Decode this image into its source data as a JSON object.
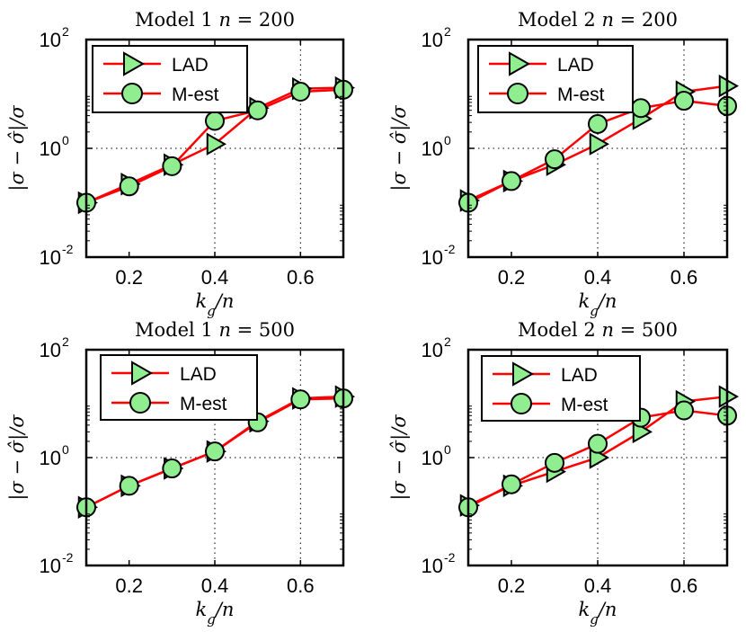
{
  "colors": {
    "line": "#ff0000",
    "marker_fill": "#90ee90",
    "marker_edge": "#000000",
    "axes": "#000000",
    "grid": "#000000",
    "background": "#ffffff"
  },
  "chart_data": [
    {
      "type": "line",
      "title": "Model 1 n = 200",
      "xlabel": "k_g/n",
      "ylabel": "|σ − σ̂|/σ",
      "yscale": "log",
      "xlim": [
        0.1,
        0.7
      ],
      "ylim": [
        0.01,
        100
      ],
      "xticks": [
        "0.2",
        "0.4",
        "0.6"
      ],
      "yticks": [
        {
          "base": "10",
          "exp": "2"
        },
        {
          "base": "10",
          "exp": "0"
        },
        {
          "base": "10",
          "exp": "-2"
        }
      ],
      "grid": "dotted at 0.4, 0.6 and 10^0",
      "legend_position": "top-left",
      "x": [
        0.1,
        0.2,
        0.3,
        0.4,
        0.5,
        0.6,
        0.7
      ],
      "series": [
        {
          "name": "LAD",
          "marker": "triangle-right",
          "values": [
            0.1,
            0.22,
            0.5,
            1.2,
            5.5,
            12.5,
            13.0
          ]
        },
        {
          "name": "M-est",
          "marker": "circle",
          "values": [
            0.1,
            0.2,
            0.47,
            3.2,
            5.0,
            11.0,
            12.0
          ]
        }
      ]
    },
    {
      "type": "line",
      "title": "Model 2 n = 200",
      "xlabel": "k_g/n",
      "ylabel": "|σ − σ̂|/σ",
      "yscale": "log",
      "xlim": [
        0.1,
        0.7
      ],
      "ylim": [
        0.01,
        100
      ],
      "xticks": [
        "0.2",
        "0.4",
        "0.6"
      ],
      "yticks": [
        {
          "base": "10",
          "exp": "2"
        },
        {
          "base": "10",
          "exp": "0"
        },
        {
          "base": "10",
          "exp": "-2"
        }
      ],
      "grid": "dotted at 0.4, 0.6 and 10^0",
      "legend_position": "top-left",
      "x": [
        0.1,
        0.2,
        0.3,
        0.4,
        0.5,
        0.6,
        0.7
      ],
      "series": [
        {
          "name": "LAD",
          "marker": "triangle-right",
          "values": [
            0.11,
            0.25,
            0.5,
            1.2,
            3.5,
            11.0,
            14.0
          ]
        },
        {
          "name": "M-est",
          "marker": "circle",
          "values": [
            0.1,
            0.25,
            0.63,
            2.8,
            5.5,
            7.5,
            6.0
          ]
        }
      ]
    },
    {
      "type": "line",
      "title": "Model 1 n = 500",
      "xlabel": "k_g/n",
      "ylabel": "|σ − σ̂|/σ",
      "yscale": "log",
      "xlim": [
        0.1,
        0.7
      ],
      "ylim": [
        0.01,
        100
      ],
      "xticks": [
        "0.2",
        "0.4",
        "0.6"
      ],
      "yticks": [
        {
          "base": "10",
          "exp": "2"
        },
        {
          "base": "10",
          "exp": "0"
        },
        {
          "base": "10",
          "exp": "-2"
        }
      ],
      "grid": "dotted at 0.4, 0.6 and 10^0",
      "legend_position": "top-left",
      "x": [
        0.1,
        0.2,
        0.3,
        0.4,
        0.5,
        0.6,
        0.7
      ],
      "series": [
        {
          "name": "LAD",
          "marker": "triangle-right",
          "values": [
            0.12,
            0.3,
            0.63,
            1.3,
            4.7,
            12.5,
            13.5
          ]
        },
        {
          "name": "M-est",
          "marker": "circle",
          "values": [
            0.12,
            0.3,
            0.63,
            1.3,
            4.5,
            12.0,
            12.5
          ]
        }
      ]
    },
    {
      "type": "line",
      "title": "Model 2 n = 500",
      "xlabel": "k_g/n",
      "ylabel": "|σ − σ̂|/σ",
      "yscale": "log",
      "xlim": [
        0.1,
        0.7
      ],
      "ylim": [
        0.01,
        100
      ],
      "xticks": [
        "0.2",
        "0.4",
        "0.6"
      ],
      "yticks": [
        {
          "base": "10",
          "exp": "2"
        },
        {
          "base": "10",
          "exp": "0"
        },
        {
          "base": "10",
          "exp": "-2"
        }
      ],
      "grid": "dotted at 0.4, 0.6 and 10^0",
      "legend_position": "top-left",
      "x": [
        0.1,
        0.2,
        0.3,
        0.4,
        0.5,
        0.6,
        0.7
      ],
      "series": [
        {
          "name": "LAD",
          "marker": "triangle-right",
          "values": [
            0.13,
            0.3,
            0.55,
            1.0,
            3.0,
            11.0,
            13.5
          ]
        },
        {
          "name": "M-est",
          "marker": "circle",
          "values": [
            0.12,
            0.32,
            0.8,
            1.8,
            5.5,
            7.5,
            6.0
          ]
        }
      ]
    }
  ]
}
